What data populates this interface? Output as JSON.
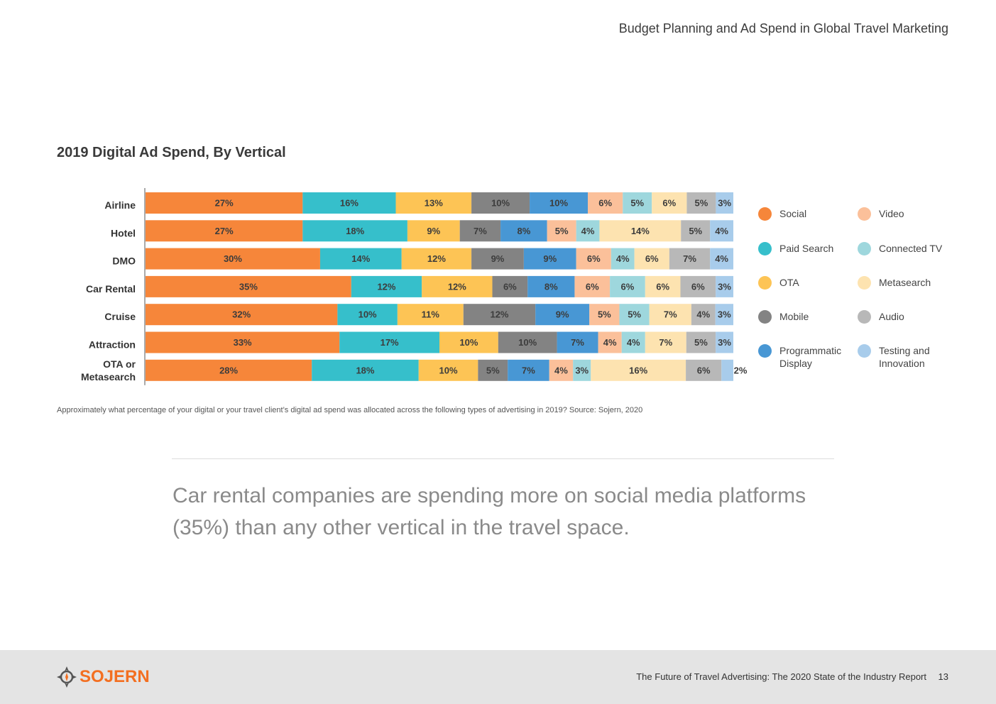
{
  "header": {
    "title": "Budget Planning and Ad Spend in Global Travel Marketing"
  },
  "colors": {
    "Social": "#f6863a",
    "Paid Search": "#36bfcb",
    "OTA": "#fdc455",
    "Mobile": "#838383",
    "Programmatic Display": "#4897d4",
    "Video": "#fbc09a",
    "Connected TV": "#9ed7dd",
    "Metasearch": "#fde3b0",
    "Audio": "#b8b8b8",
    "Testing and Innovation": "#a8cceb"
  },
  "chart_data": {
    "type": "bar",
    "orientation": "horizontal",
    "stacked": true,
    "title": "2019 Digital Ad Spend, By Vertical",
    "unit": "%",
    "categories": [
      "Airline",
      "Hotel",
      "DMO",
      "Car Rental",
      "Cruise",
      "Attraction",
      "OTA or Metasearch"
    ],
    "category_lines": [
      [
        "Airline"
      ],
      [
        "Hotel"
      ],
      [
        "DMO"
      ],
      [
        "Car Rental"
      ],
      [
        "Cruise"
      ],
      [
        "Attraction"
      ],
      [
        "OTA or",
        "Metasearch"
      ]
    ],
    "series": [
      {
        "name": "Social",
        "values": [
          27,
          27,
          30,
          35,
          32,
          33,
          28
        ]
      },
      {
        "name": "Paid Search",
        "values": [
          16,
          18,
          14,
          12,
          10,
          17,
          18
        ]
      },
      {
        "name": "OTA",
        "values": [
          13,
          9,
          12,
          12,
          11,
          10,
          10
        ]
      },
      {
        "name": "Mobile",
        "values": [
          10,
          7,
          9,
          6,
          12,
          10,
          5
        ]
      },
      {
        "name": "Programmatic Display",
        "values": [
          10,
          8,
          9,
          8,
          9,
          7,
          7
        ]
      },
      {
        "name": "Video",
        "values": [
          6,
          5,
          6,
          6,
          5,
          4,
          4
        ]
      },
      {
        "name": "Connected TV",
        "values": [
          5,
          4,
          4,
          6,
          5,
          4,
          3
        ]
      },
      {
        "name": "Metasearch",
        "values": [
          6,
          14,
          6,
          6,
          7,
          7,
          16
        ]
      },
      {
        "name": "Audio",
        "values": [
          5,
          5,
          7,
          6,
          4,
          5,
          6
        ]
      },
      {
        "name": "Testing and Innovation",
        "values": [
          3,
          4,
          4,
          3,
          3,
          3,
          2
        ]
      }
    ],
    "legend": [
      [
        "Social",
        "Video"
      ],
      [
        "Paid Search",
        "Connected TV"
      ],
      [
        "OTA",
        "Metasearch"
      ],
      [
        "Mobile",
        "Audio"
      ],
      [
        "Programmatic Display",
        "Testing and Innovation"
      ]
    ],
    "legend_position": "right"
  },
  "footnote": "Approximately what percentage of your digital or your travel client’s digital ad spend was allocated across the following types of advertising in 2019? Source: Sojern, 2020",
  "quote": "Car rental companies are spending more on social media platforms (35%) than any other vertical in the travel space.",
  "footer": {
    "logo": "SOJERN",
    "report_title": "The Future of Travel Advertising: The 2020 State of the Industry Report",
    "page_number": "13"
  }
}
